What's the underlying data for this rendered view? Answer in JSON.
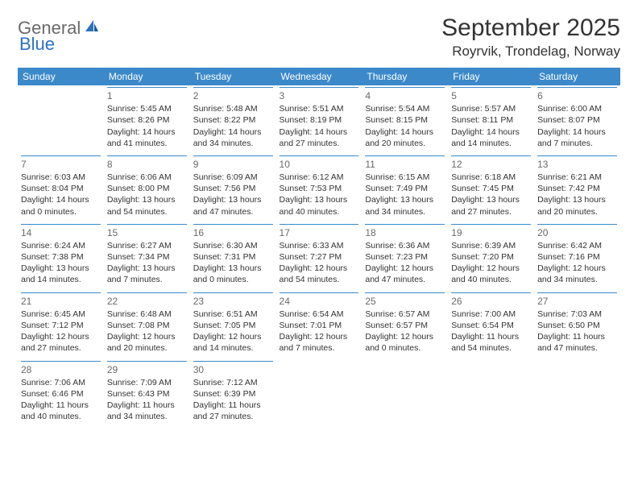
{
  "brand": {
    "part1": "General",
    "part2": "Blue"
  },
  "title": "September 2025",
  "location": "Royrvik, Trondelag, Norway",
  "header_color": "#3c89ca",
  "daynum_color": "#6a6a6a",
  "border_color": "#3c89ca",
  "text_color": "#333333",
  "font_family": "Arial",
  "daysOfWeek": [
    "Sunday",
    "Monday",
    "Tuesday",
    "Wednesday",
    "Thursday",
    "Friday",
    "Saturday"
  ],
  "weeks": [
    [
      null,
      {
        "n": "1",
        "sr": "Sunrise: 5:45 AM",
        "ss": "Sunset: 8:26 PM",
        "d1": "Daylight: 14 hours",
        "d2": "and 41 minutes."
      },
      {
        "n": "2",
        "sr": "Sunrise: 5:48 AM",
        "ss": "Sunset: 8:22 PM",
        "d1": "Daylight: 14 hours",
        "d2": "and 34 minutes."
      },
      {
        "n": "3",
        "sr": "Sunrise: 5:51 AM",
        "ss": "Sunset: 8:19 PM",
        "d1": "Daylight: 14 hours",
        "d2": "and 27 minutes."
      },
      {
        "n": "4",
        "sr": "Sunrise: 5:54 AM",
        "ss": "Sunset: 8:15 PM",
        "d1": "Daylight: 14 hours",
        "d2": "and 20 minutes."
      },
      {
        "n": "5",
        "sr": "Sunrise: 5:57 AM",
        "ss": "Sunset: 8:11 PM",
        "d1": "Daylight: 14 hours",
        "d2": "and 14 minutes."
      },
      {
        "n": "6",
        "sr": "Sunrise: 6:00 AM",
        "ss": "Sunset: 8:07 PM",
        "d1": "Daylight: 14 hours",
        "d2": "and 7 minutes."
      }
    ],
    [
      {
        "n": "7",
        "sr": "Sunrise: 6:03 AM",
        "ss": "Sunset: 8:04 PM",
        "d1": "Daylight: 14 hours",
        "d2": "and 0 minutes."
      },
      {
        "n": "8",
        "sr": "Sunrise: 6:06 AM",
        "ss": "Sunset: 8:00 PM",
        "d1": "Daylight: 13 hours",
        "d2": "and 54 minutes."
      },
      {
        "n": "9",
        "sr": "Sunrise: 6:09 AM",
        "ss": "Sunset: 7:56 PM",
        "d1": "Daylight: 13 hours",
        "d2": "and 47 minutes."
      },
      {
        "n": "10",
        "sr": "Sunrise: 6:12 AM",
        "ss": "Sunset: 7:53 PM",
        "d1": "Daylight: 13 hours",
        "d2": "and 40 minutes."
      },
      {
        "n": "11",
        "sr": "Sunrise: 6:15 AM",
        "ss": "Sunset: 7:49 PM",
        "d1": "Daylight: 13 hours",
        "d2": "and 34 minutes."
      },
      {
        "n": "12",
        "sr": "Sunrise: 6:18 AM",
        "ss": "Sunset: 7:45 PM",
        "d1": "Daylight: 13 hours",
        "d2": "and 27 minutes."
      },
      {
        "n": "13",
        "sr": "Sunrise: 6:21 AM",
        "ss": "Sunset: 7:42 PM",
        "d1": "Daylight: 13 hours",
        "d2": "and 20 minutes."
      }
    ],
    [
      {
        "n": "14",
        "sr": "Sunrise: 6:24 AM",
        "ss": "Sunset: 7:38 PM",
        "d1": "Daylight: 13 hours",
        "d2": "and 14 minutes."
      },
      {
        "n": "15",
        "sr": "Sunrise: 6:27 AM",
        "ss": "Sunset: 7:34 PM",
        "d1": "Daylight: 13 hours",
        "d2": "and 7 minutes."
      },
      {
        "n": "16",
        "sr": "Sunrise: 6:30 AM",
        "ss": "Sunset: 7:31 PM",
        "d1": "Daylight: 13 hours",
        "d2": "and 0 minutes."
      },
      {
        "n": "17",
        "sr": "Sunrise: 6:33 AM",
        "ss": "Sunset: 7:27 PM",
        "d1": "Daylight: 12 hours",
        "d2": "and 54 minutes."
      },
      {
        "n": "18",
        "sr": "Sunrise: 6:36 AM",
        "ss": "Sunset: 7:23 PM",
        "d1": "Daylight: 12 hours",
        "d2": "and 47 minutes."
      },
      {
        "n": "19",
        "sr": "Sunrise: 6:39 AM",
        "ss": "Sunset: 7:20 PM",
        "d1": "Daylight: 12 hours",
        "d2": "and 40 minutes."
      },
      {
        "n": "20",
        "sr": "Sunrise: 6:42 AM",
        "ss": "Sunset: 7:16 PM",
        "d1": "Daylight: 12 hours",
        "d2": "and 34 minutes."
      }
    ],
    [
      {
        "n": "21",
        "sr": "Sunrise: 6:45 AM",
        "ss": "Sunset: 7:12 PM",
        "d1": "Daylight: 12 hours",
        "d2": "and 27 minutes."
      },
      {
        "n": "22",
        "sr": "Sunrise: 6:48 AM",
        "ss": "Sunset: 7:08 PM",
        "d1": "Daylight: 12 hours",
        "d2": "and 20 minutes."
      },
      {
        "n": "23",
        "sr": "Sunrise: 6:51 AM",
        "ss": "Sunset: 7:05 PM",
        "d1": "Daylight: 12 hours",
        "d2": "and 14 minutes."
      },
      {
        "n": "24",
        "sr": "Sunrise: 6:54 AM",
        "ss": "Sunset: 7:01 PM",
        "d1": "Daylight: 12 hours",
        "d2": "and 7 minutes."
      },
      {
        "n": "25",
        "sr": "Sunrise: 6:57 AM",
        "ss": "Sunset: 6:57 PM",
        "d1": "Daylight: 12 hours",
        "d2": "and 0 minutes."
      },
      {
        "n": "26",
        "sr": "Sunrise: 7:00 AM",
        "ss": "Sunset: 6:54 PM",
        "d1": "Daylight: 11 hours",
        "d2": "and 54 minutes."
      },
      {
        "n": "27",
        "sr": "Sunrise: 7:03 AM",
        "ss": "Sunset: 6:50 PM",
        "d1": "Daylight: 11 hours",
        "d2": "and 47 minutes."
      }
    ],
    [
      {
        "n": "28",
        "sr": "Sunrise: 7:06 AM",
        "ss": "Sunset: 6:46 PM",
        "d1": "Daylight: 11 hours",
        "d2": "and 40 minutes."
      },
      {
        "n": "29",
        "sr": "Sunrise: 7:09 AM",
        "ss": "Sunset: 6:43 PM",
        "d1": "Daylight: 11 hours",
        "d2": "and 34 minutes."
      },
      {
        "n": "30",
        "sr": "Sunrise: 7:12 AM",
        "ss": "Sunset: 6:39 PM",
        "d1": "Daylight: 11 hours",
        "d2": "and 27 minutes."
      },
      null,
      null,
      null,
      null
    ]
  ]
}
